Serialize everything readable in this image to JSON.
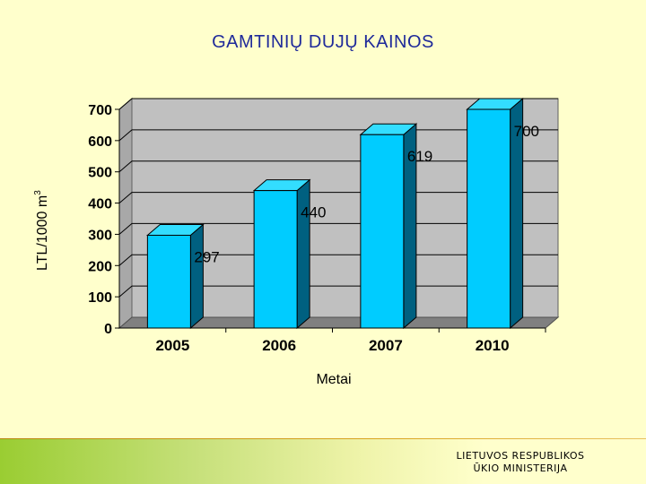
{
  "page": {
    "title": "GAMTINIŲ DUJŲ KAINOS",
    "ministry_line1": "LIETUVOS RESPUBLIKOS",
    "ministry_line2": "ŪKIO MINISTERIJA"
  },
  "colors": {
    "bar_front": "#00CCFF",
    "bar_side": "#006080",
    "bar_top": "#33DDFF",
    "plot_wall": "#C0C0C0",
    "plot_floor": "#808080",
    "title": "#1F2A9A",
    "background": "#FFFFCC"
  },
  "chart_data": {
    "type": "bar",
    "categories": [
      "2005",
      "2006",
      "2007",
      "2010"
    ],
    "values": [
      297,
      440,
      619,
      700
    ],
    "data_labels": [
      "297",
      "440",
      "619",
      "700"
    ],
    "title": "GAMTINIŲ DUJŲ KAINOS",
    "xlabel": "Metai",
    "ylabel": "LTL/1000 m",
    "ylabel_superscript": "3",
    "ylim": [
      0,
      700
    ],
    "yticks": [
      0,
      100,
      200,
      300,
      400,
      500,
      600,
      700
    ],
    "grid": true,
    "legend": "none"
  }
}
